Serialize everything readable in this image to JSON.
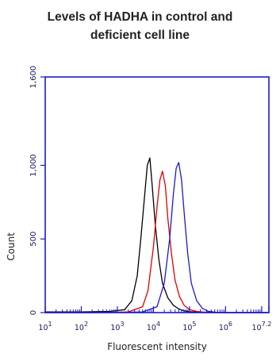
{
  "chart_data": {
    "type": "line",
    "title_lines": [
      "Levels of HADHA in control and",
      "deficient cell line"
    ],
    "xlabel": "Fluorescent intensity",
    "ylabel": "Count",
    "x_scale": "log",
    "xlim": [
      1,
      7.2
    ],
    "x_tick_labels": [
      "10^1",
      "10^2",
      "10^3",
      "10^4",
      "10^5",
      "10^6",
      "10^7.2"
    ],
    "ylim": [
      0,
      1600
    ],
    "y_ticks": [
      0,
      500,
      1000,
      1600
    ],
    "y_tick_labels": [
      "0",
      "500",
      "1,000",
      "1,600"
    ],
    "series": [
      {
        "color": "#000000",
        "x": [
          1.0,
          2.0,
          2.8,
          3.2,
          3.4,
          3.55,
          3.65,
          3.75,
          3.83,
          3.9,
          3.96,
          4.05,
          4.15,
          4.25,
          4.4,
          4.55,
          4.7,
          4.85,
          5.0,
          5.3,
          6.0,
          7.2
        ],
        "y": [
          5,
          5,
          8,
          20,
          80,
          250,
          500,
          780,
          1000,
          1050,
          880,
          600,
          360,
          200,
          100,
          50,
          25,
          12,
          6,
          3,
          0,
          0
        ]
      },
      {
        "color": "#e00000",
        "x": [
          1.0,
          2.5,
          3.3,
          3.7,
          3.85,
          4.0,
          4.1,
          4.18,
          4.25,
          4.33,
          4.4,
          4.5,
          4.6,
          4.72,
          4.85,
          5.0,
          5.2,
          5.5,
          7.2
        ],
        "y": [
          0,
          0,
          5,
          40,
          150,
          450,
          720,
          900,
          960,
          860,
          640,
          400,
          220,
          110,
          50,
          20,
          8,
          0,
          0
        ]
      },
      {
        "color": "#1a1ad0",
        "x": [
          1.0,
          2.8,
          3.7,
          4.1,
          4.3,
          4.45,
          4.55,
          4.63,
          4.7,
          4.78,
          4.86,
          4.95,
          5.05,
          5.2,
          5.35,
          5.5,
          5.8,
          7.2
        ],
        "y": [
          0,
          0,
          5,
          40,
          200,
          500,
          800,
          980,
          1020,
          900,
          650,
          400,
          200,
          80,
          30,
          10,
          0,
          0
        ]
      }
    ]
  }
}
